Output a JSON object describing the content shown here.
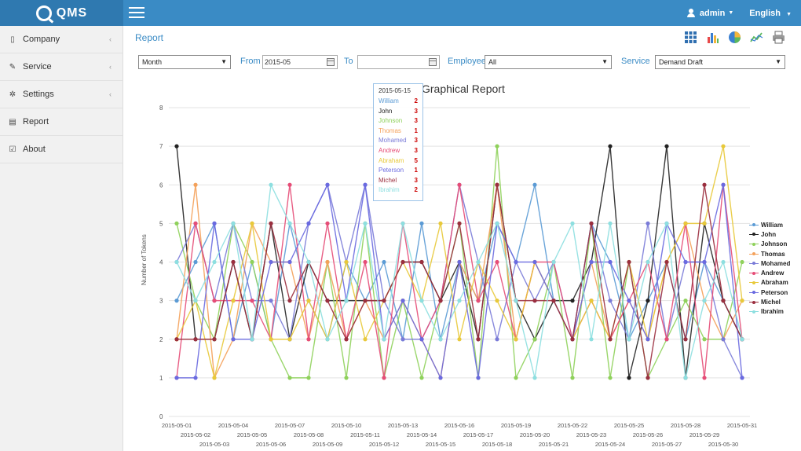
{
  "header": {
    "logo_text": "QMS",
    "user_label": "admin",
    "language_label": "English"
  },
  "sidebar": {
    "items": [
      {
        "label": "Company",
        "icon": "building-icon",
        "has_submenu": true
      },
      {
        "label": "Service",
        "icon": "wrench-icon",
        "has_submenu": true
      },
      {
        "label": "Settings",
        "icon": "gear-icon",
        "has_submenu": true
      },
      {
        "label": "Report",
        "icon": "document-icon",
        "has_submenu": false
      },
      {
        "label": "About",
        "icon": "edit-icon",
        "has_submenu": false
      }
    ]
  },
  "main": {
    "breadcrumb": "Report",
    "toolbar": [
      "grid-view-icon",
      "bar-chart-icon",
      "pie-chart-icon",
      "line-chart-icon",
      "printer-icon"
    ]
  },
  "filters": {
    "period_value": "Month",
    "from_label": "From",
    "from_value": "2015-05",
    "to_label": "To",
    "to_value": "",
    "employee_label": "Employee",
    "employee_value": "All",
    "service_label": "Service",
    "service_value": "Demand Draft"
  },
  "tooltip": {
    "date": "2015-05-15",
    "rows": [
      {
        "name": "William",
        "value": "2",
        "color": "#5b9bd5"
      },
      {
        "name": "John",
        "value": "3",
        "color": "#222222"
      },
      {
        "name": "Johnson",
        "value": "3",
        "color": "#8fd15b"
      },
      {
        "name": "Thomas",
        "value": "1",
        "color": "#f4a15a"
      },
      {
        "name": "Mohamed",
        "value": "3",
        "color": "#7a7bd8"
      },
      {
        "name": "Andrew",
        "value": "3",
        "color": "#e64d77"
      },
      {
        "name": "Abraham",
        "value": "5",
        "color": "#e8c93a"
      },
      {
        "name": "Peterson",
        "value": "1",
        "color": "#6a6ae0"
      },
      {
        "name": "Michel",
        "value": "3",
        "color": "#9b2f3f"
      },
      {
        "name": "Ibrahim",
        "value": "2",
        "color": "#8ddfe0"
      }
    ]
  },
  "chart_data": {
    "type": "line",
    "title": "Graphical Report",
    "ylabel": "Number of Tokens",
    "xlabel": "",
    "ylim": [
      0,
      8
    ],
    "yticks": [
      0,
      1,
      2,
      3,
      4,
      5,
      6,
      7,
      8
    ],
    "grid": true,
    "legend_position": "right",
    "x": [
      "2015-05-01",
      "2015-05-02",
      "2015-05-03",
      "2015-05-04",
      "2015-05-05",
      "2015-05-06",
      "2015-05-07",
      "2015-05-08",
      "2015-05-09",
      "2015-05-10",
      "2015-05-11",
      "2015-05-12",
      "2015-05-13",
      "2015-05-14",
      "2015-05-15",
      "2015-05-16",
      "2015-05-17",
      "2015-05-18",
      "2015-05-19",
      "2015-05-20",
      "2015-05-21",
      "2015-05-22",
      "2015-05-23",
      "2015-05-24",
      "2015-05-25",
      "2015-05-26",
      "2015-05-27",
      "2015-05-28",
      "2015-05-29",
      "2015-05-30",
      "2015-05-31"
    ],
    "series": [
      {
        "name": "William",
        "color": "#5b9bd5",
        "values": [
          3,
          4,
          5,
          2,
          4,
          2,
          5,
          3,
          2,
          4,
          3,
          4,
          2,
          5,
          2,
          4,
          3,
          5,
          4,
          6,
          3,
          2,
          5,
          4,
          2,
          3,
          4,
          2,
          4,
          3,
          2
        ]
      },
      {
        "name": "John",
        "color": "#222222",
        "values": [
          7,
          2,
          2,
          4,
          2,
          5,
          2,
          4,
          3,
          3,
          3,
          3,
          4,
          4,
          3,
          4,
          2,
          6,
          3,
          2,
          3,
          3,
          4,
          7,
          1,
          3,
          7,
          1,
          5,
          3,
          2
        ]
      },
      {
        "name": "Johnson",
        "color": "#8fd15b",
        "values": [
          5,
          3,
          2,
          5,
          4,
          2,
          1,
          1,
          4,
          1,
          5,
          1,
          3,
          1,
          3,
          5,
          1,
          7,
          1,
          2,
          4,
          1,
          5,
          1,
          4,
          1,
          2,
          3,
          2,
          2,
          4
        ]
      },
      {
        "name": "Thomas",
        "color": "#f4a15a",
        "values": [
          2,
          6,
          1,
          2,
          5,
          4,
          4,
          2,
          4,
          2,
          3,
          2,
          3,
          2,
          1,
          4,
          3,
          6,
          2,
          4,
          3,
          2,
          4,
          2,
          3,
          2,
          4,
          5,
          3,
          2,
          3
        ]
      },
      {
        "name": "Mohamed",
        "color": "#7a7bd8",
        "values": [
          4,
          5,
          3,
          5,
          3,
          3,
          2,
          5,
          6,
          4,
          6,
          3,
          2,
          2,
          3,
          6,
          4,
          2,
          4,
          3,
          4,
          2,
          5,
          3,
          2,
          5,
          2,
          4,
          4,
          2,
          1
        ]
      },
      {
        "name": "Andrew",
        "color": "#e64d77",
        "values": [
          1,
          5,
          3,
          3,
          3,
          2,
          6,
          2,
          5,
          2,
          4,
          1,
          5,
          2,
          3,
          6,
          3,
          4,
          2,
          4,
          4,
          2,
          3,
          2,
          3,
          4,
          2,
          5,
          1,
          6,
          2
        ]
      },
      {
        "name": "Abraham",
        "color": "#e8c93a",
        "values": [
          2,
          3,
          1,
          3,
          5,
          2,
          2,
          3,
          2,
          4,
          2,
          3,
          4,
          3,
          5,
          2,
          4,
          3,
          2,
          4,
          3,
          2,
          3,
          2,
          4,
          2,
          4,
          5,
          5,
          7,
          3
        ]
      },
      {
        "name": "Peterson",
        "color": "#6a6ae0",
        "values": [
          1,
          1,
          5,
          2,
          2,
          4,
          4,
          5,
          6,
          3,
          6,
          2,
          3,
          2,
          1,
          4,
          1,
          5,
          4,
          4,
          3,
          2,
          4,
          4,
          3,
          2,
          5,
          4,
          4,
          6,
          1
        ]
      },
      {
        "name": "Michel",
        "color": "#9b2f3f",
        "values": [
          2,
          2,
          2,
          4,
          2,
          5,
          3,
          4,
          3,
          2,
          3,
          3,
          4,
          4,
          3,
          5,
          2,
          6,
          3,
          3,
          3,
          2,
          5,
          2,
          4,
          1,
          4,
          2,
          6,
          3,
          2
        ]
      },
      {
        "name": "Ibrahim",
        "color": "#8ddfe0",
        "values": [
          4,
          3,
          4,
          5,
          2,
          6,
          5,
          4,
          2,
          3,
          5,
          2,
          5,
          3,
          2,
          3,
          4,
          5,
          3,
          1,
          4,
          5,
          2,
          5,
          2,
          4,
          5,
          1,
          3,
          4,
          2
        ]
      }
    ]
  }
}
